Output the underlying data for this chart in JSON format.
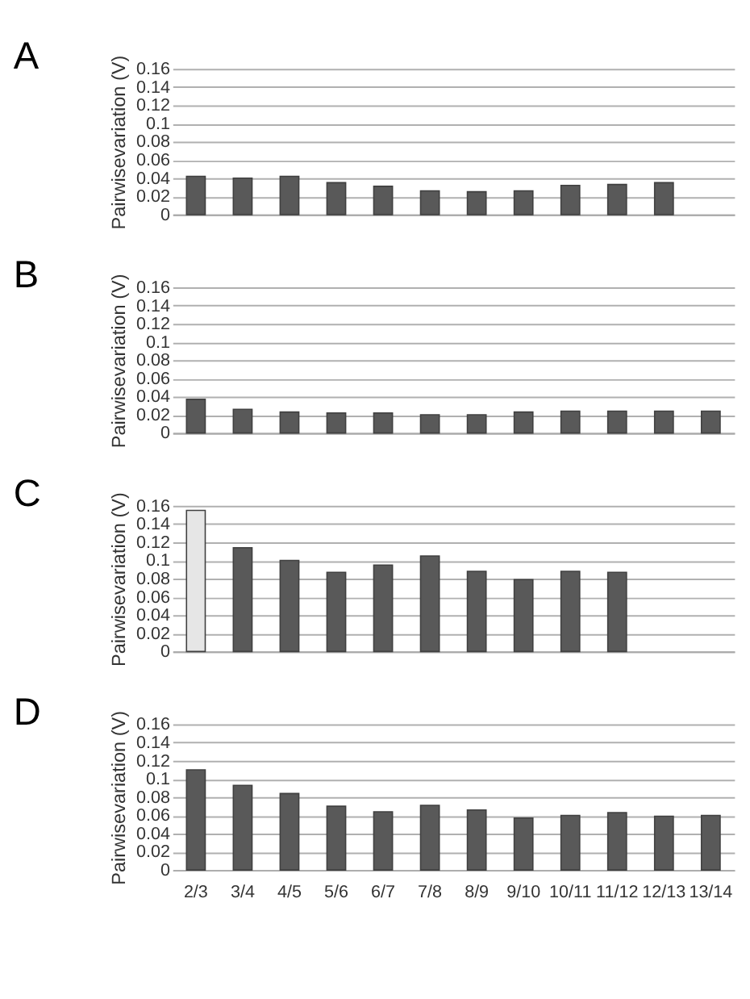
{
  "chart_data": [
    {
      "type": "bar",
      "title": "A",
      "ylabel": "Pairwisevariation (V)",
      "categories": [
        null,
        null,
        null,
        null,
        null,
        null,
        null,
        null,
        null,
        null,
        null,
        null
      ],
      "values": [
        0.042,
        0.04,
        0.042,
        0.035,
        0.031,
        0.026,
        0.025,
        0.026,
        0.032,
        0.033,
        0.035,
        null
      ],
      "color": "#595959",
      "ylim": [
        0,
        0.16
      ],
      "yticks": [
        0,
        0.02,
        0.04,
        0.06,
        0.08,
        0.1,
        0.12,
        0.14,
        0.16
      ],
      "grid": "y",
      "tick_labels": "y"
    },
    {
      "type": "bar",
      "title": "B",
      "ylabel": "Pairwisevariation (V)",
      "categories": [
        null,
        null,
        null,
        null,
        null,
        null,
        null,
        null,
        null,
        null,
        null,
        null
      ],
      "values": [
        0.037,
        0.026,
        0.023,
        0.022,
        0.022,
        0.02,
        0.02,
        0.023,
        0.024,
        0.024,
        0.024,
        0.024
      ],
      "color": "#595959",
      "ylim": [
        0,
        0.16
      ],
      "yticks": [
        0,
        0.02,
        0.04,
        0.06,
        0.08,
        0.1,
        0.12,
        0.14,
        0.16
      ],
      "grid": "y",
      "tick_labels": "y"
    },
    {
      "type": "bar",
      "title": "C",
      "ylabel": "Pairwisevariation (V)",
      "categories": [
        null,
        null,
        null,
        null,
        null,
        null,
        null,
        null,
        null,
        null,
        null,
        null
      ],
      "values": [
        0.155,
        0.114,
        0.1,
        0.087,
        0.095,
        0.105,
        0.088,
        0.079,
        0.088,
        0.087,
        null,
        null
      ],
      "colors": [
        "#e6e6e6",
        "#595959",
        "#595959",
        "#595959",
        "#595959",
        "#595959",
        "#595959",
        "#595959",
        "#595959",
        "#595959",
        "#595959",
        "#595959"
      ],
      "ylim": [
        0,
        0.16
      ],
      "yticks": [
        0,
        0.02,
        0.04,
        0.06,
        0.08,
        0.1,
        0.12,
        0.14,
        0.16
      ],
      "grid": "y",
      "tick_labels": "y"
    },
    {
      "type": "bar",
      "title": "D",
      "ylabel": "Pairwisevariation (V)",
      "categories": [
        "2/3",
        "3/4",
        "4/5",
        "5/6",
        "6/7",
        "7/8",
        "8/9",
        "9/10",
        "10/11",
        "11/12",
        "12/13",
        "13/14"
      ],
      "values": [
        0.11,
        0.093,
        0.084,
        0.07,
        0.064,
        0.071,
        0.066,
        0.057,
        0.06,
        0.063,
        0.059,
        0.06
      ],
      "color": "#595959",
      "ylim": [
        0,
        0.16
      ],
      "yticks": [
        0,
        0.02,
        0.04,
        0.06,
        0.08,
        0.1,
        0.12,
        0.14,
        0.16
      ],
      "grid": "y"
    }
  ]
}
